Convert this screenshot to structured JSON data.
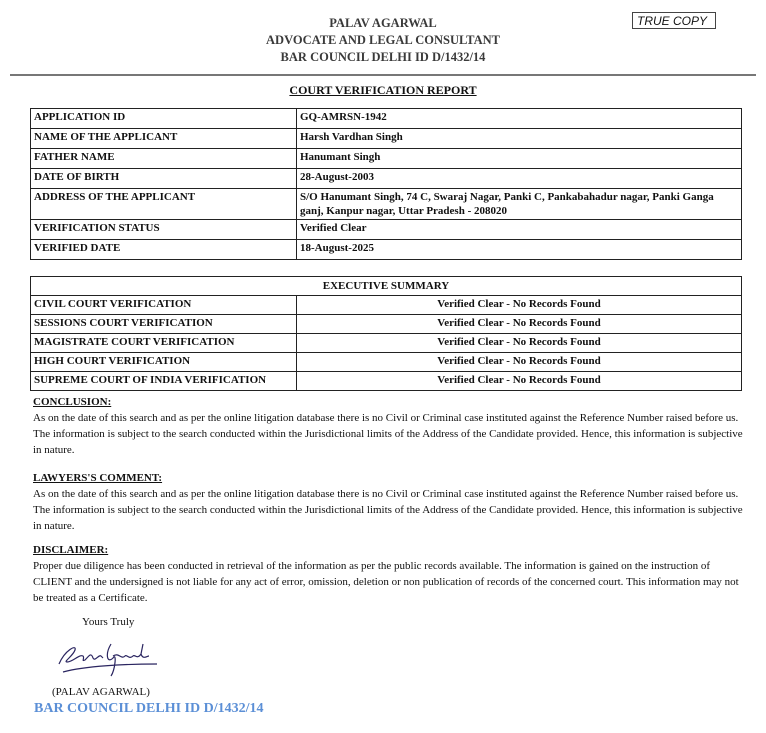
{
  "letterhead": {
    "name": "PALAV AGARWAL",
    "designation": "ADVOCATE AND LEGAL CONSULTANT",
    "bar_id": "BAR COUNCIL DELHI ID D/1432/14",
    "stamp": "TRUE COPY"
  },
  "title": "COURT VERIFICATION REPORT",
  "details": [
    {
      "label": "APPLICATION ID",
      "value": "GQ-AMRSN-1942"
    },
    {
      "label": "NAME OF THE APPLICANT",
      "value": "Harsh Vardhan Singh"
    },
    {
      "label": "FATHER NAME",
      "value": "Hanumant Singh"
    },
    {
      "label": "DATE OF BIRTH",
      "value": "28-August-2003"
    },
    {
      "label": "ADDRESS OF THE APPLICANT",
      "value": "S/O Hanumant Singh, 74 C, Swaraj Nagar, Panki C, Pankabahadur nagar, Panki Ganga ganj, Kanpur nagar, Uttar Pradesh - 208020"
    },
    {
      "label": "VERIFICATION STATUS",
      "value": "Verified Clear"
    },
    {
      "label": "VERIFIED DATE",
      "value": "18-August-2025"
    }
  ],
  "summary": {
    "heading": "EXECUTIVE SUMMARY",
    "rows": [
      {
        "label": "CIVIL COURT VERIFICATION",
        "value": "Verified Clear - No Records Found"
      },
      {
        "label": "SESSIONS COURT VERIFICATION",
        "value": "Verified Clear - No Records Found"
      },
      {
        "label": "MAGISTRATE COURT VERIFICATION",
        "value": "Verified Clear - No Records Found"
      },
      {
        "label": "HIGH COURT VERIFICATION",
        "value": "Verified Clear - No Records Found"
      },
      {
        "label": "SUPREME COURT OF INDIA VERIFICATION",
        "value": "Verified Clear - No Records Found"
      }
    ]
  },
  "conclusion": {
    "heading": "CONCLUSION:",
    "text": "As on the date of this search and as per the online litigation database there is no Civil or Criminal case instituted against the Reference Number raised before us. The information is subject to the search conducted within the Jurisdictional limits of the Address of the Candidate provided. Hence, this information is subjective in nature."
  },
  "lawyers_comment": {
    "heading": "LAWYERS'S COMMENT:",
    "text": "As on the date of this search and as per the online litigation database there is no Civil or Criminal case instituted against the Reference Number raised before us. The information is subject to the search conducted within the Jurisdictional limits of the Address of the Candidate provided. Hence, this information is subjective in nature."
  },
  "disclaimer": {
    "heading": "DISCLAIMER:",
    "text": "Proper due diligence has been conducted in retrieval of the information as per the public records available. The information is gained on the instruction of CLIENT and the undersigned is not liable for any act of error, omission, deletion or non publication of records of the concerned court. This information may not be treated as a Certificate."
  },
  "signoff": {
    "closing": "Yours Truly",
    "signature": "Palav Agarwal",
    "name": "(PALAV AGARWAL)",
    "bar_id": "BAR COUNCIL DELHI ID D/1432/14"
  }
}
